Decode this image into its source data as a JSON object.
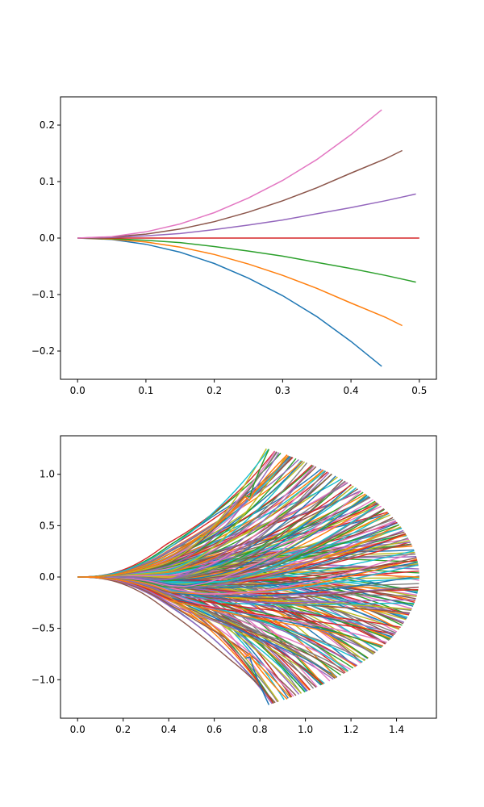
{
  "chart_data": [
    {
      "type": "line",
      "title": "",
      "xlabel": "",
      "ylabel": "",
      "xlim": [
        -0.025,
        0.525
      ],
      "ylim": [
        -0.25,
        0.25
      ],
      "x_ticks": [
        "0.0",
        "0.1",
        "0.2",
        "0.3",
        "0.4",
        "0.5"
      ],
      "x_tick_values": [
        0.0,
        0.1,
        0.2,
        0.3,
        0.4,
        0.5
      ],
      "y_ticks": [
        "−0.2",
        "−0.1",
        "0.0",
        "0.1",
        "0.2"
      ],
      "y_tick_values": [
        -0.2,
        -0.1,
        0.0,
        0.1,
        0.2
      ],
      "series": [
        {
          "color": "#1f77b4",
          "points": [
            [
              0.0,
              0.0
            ],
            [
              0.05,
              -0.0025
            ],
            [
              0.1,
              -0.011
            ],
            [
              0.15,
              -0.025
            ],
            [
              0.2,
              -0.045
            ],
            [
              0.25,
              -0.071
            ],
            [
              0.3,
              -0.102
            ],
            [
              0.35,
              -0.139
            ],
            [
              0.4,
              -0.183
            ],
            [
              0.445,
              -0.227
            ]
          ]
        },
        {
          "color": "#ff7f0e",
          "points": [
            [
              0.0,
              0.0
            ],
            [
              0.05,
              -0.002
            ],
            [
              0.1,
              -0.007
            ],
            [
              0.15,
              -0.016
            ],
            [
              0.2,
              -0.029
            ],
            [
              0.25,
              -0.046
            ],
            [
              0.3,
              -0.066
            ],
            [
              0.35,
              -0.089
            ],
            [
              0.4,
              -0.115
            ],
            [
              0.45,
              -0.14
            ],
            [
              0.475,
              -0.155
            ]
          ]
        },
        {
          "color": "#2ca02c",
          "points": [
            [
              0.0,
              0.0
            ],
            [
              0.05,
              -0.001
            ],
            [
              0.1,
              -0.004
            ],
            [
              0.15,
              -0.008
            ],
            [
              0.2,
              -0.015
            ],
            [
              0.25,
              -0.023
            ],
            [
              0.3,
              -0.032
            ],
            [
              0.35,
              -0.043
            ],
            [
              0.4,
              -0.054
            ],
            [
              0.45,
              -0.066
            ],
            [
              0.495,
              -0.078
            ]
          ]
        },
        {
          "color": "#d62728",
          "points": [
            [
              0.0,
              0.0
            ],
            [
              0.5,
              0.0
            ]
          ]
        },
        {
          "color": "#9467bd",
          "points": [
            [
              0.0,
              0.0
            ],
            [
              0.05,
              0.001
            ],
            [
              0.1,
              0.004
            ],
            [
              0.15,
              0.008
            ],
            [
              0.2,
              0.015
            ],
            [
              0.25,
              0.023
            ],
            [
              0.3,
              0.032
            ],
            [
              0.35,
              0.043
            ],
            [
              0.4,
              0.054
            ],
            [
              0.45,
              0.066
            ],
            [
              0.495,
              0.078
            ]
          ]
        },
        {
          "color": "#8c564b",
          "points": [
            [
              0.0,
              0.0
            ],
            [
              0.05,
              0.002
            ],
            [
              0.1,
              0.007
            ],
            [
              0.15,
              0.016
            ],
            [
              0.2,
              0.029
            ],
            [
              0.25,
              0.046
            ],
            [
              0.3,
              0.066
            ],
            [
              0.35,
              0.089
            ],
            [
              0.4,
              0.115
            ],
            [
              0.45,
              0.14
            ],
            [
              0.475,
              0.155
            ]
          ]
        },
        {
          "color": "#e377c2",
          "points": [
            [
              0.0,
              0.0
            ],
            [
              0.05,
              0.0025
            ],
            [
              0.1,
              0.011
            ],
            [
              0.15,
              0.025
            ],
            [
              0.2,
              0.045
            ],
            [
              0.25,
              0.071
            ],
            [
              0.3,
              0.102
            ],
            [
              0.35,
              0.139
            ],
            [
              0.4,
              0.183
            ],
            [
              0.445,
              0.227
            ]
          ]
        }
      ]
    },
    {
      "type": "line",
      "title": "",
      "xlabel": "",
      "ylabel": "",
      "xlim": [
        -0.075,
        1.575
      ],
      "ylim": [
        -1.375,
        1.375
      ],
      "x_ticks": [
        "0.0",
        "0.2",
        "0.4",
        "0.6",
        "0.8",
        "1.0",
        "1.2",
        "1.4"
      ],
      "x_tick_values": [
        0.0,
        0.2,
        0.4,
        0.6,
        0.8,
        1.0,
        1.2,
        1.4
      ],
      "y_ticks": [
        "−1.0",
        "−0.5",
        "0.0",
        "0.5",
        "1.0"
      ],
      "y_tick_values": [
        -1.0,
        -0.5,
        0.0,
        0.5,
        1.0
      ],
      "series_description": "many trajectories fanning out from origin to a semicircular front of radius 1.5; each path tracked in piecewise segments",
      "envelope_radius": 1.5,
      "path_count": 260,
      "colors": [
        "#1f77b4",
        "#ff7f0e",
        "#2ca02c",
        "#d62728",
        "#9467bd",
        "#8c564b",
        "#e377c2",
        "#7f7f7f",
        "#bcbd22",
        "#17becf"
      ],
      "outermost": [
        {
          "color": "#2ca02c",
          "end": [
            0.84,
            1.245
          ]
        },
        {
          "color": "#ff7f0e",
          "end": [
            0.92,
            1.19
          ]
        },
        {
          "color": "#1f77b4",
          "end": [
            0.84,
            -1.245
          ]
        },
        {
          "color": "#ff7f0e",
          "end": [
            0.92,
            -1.19
          ]
        }
      ]
    }
  ]
}
